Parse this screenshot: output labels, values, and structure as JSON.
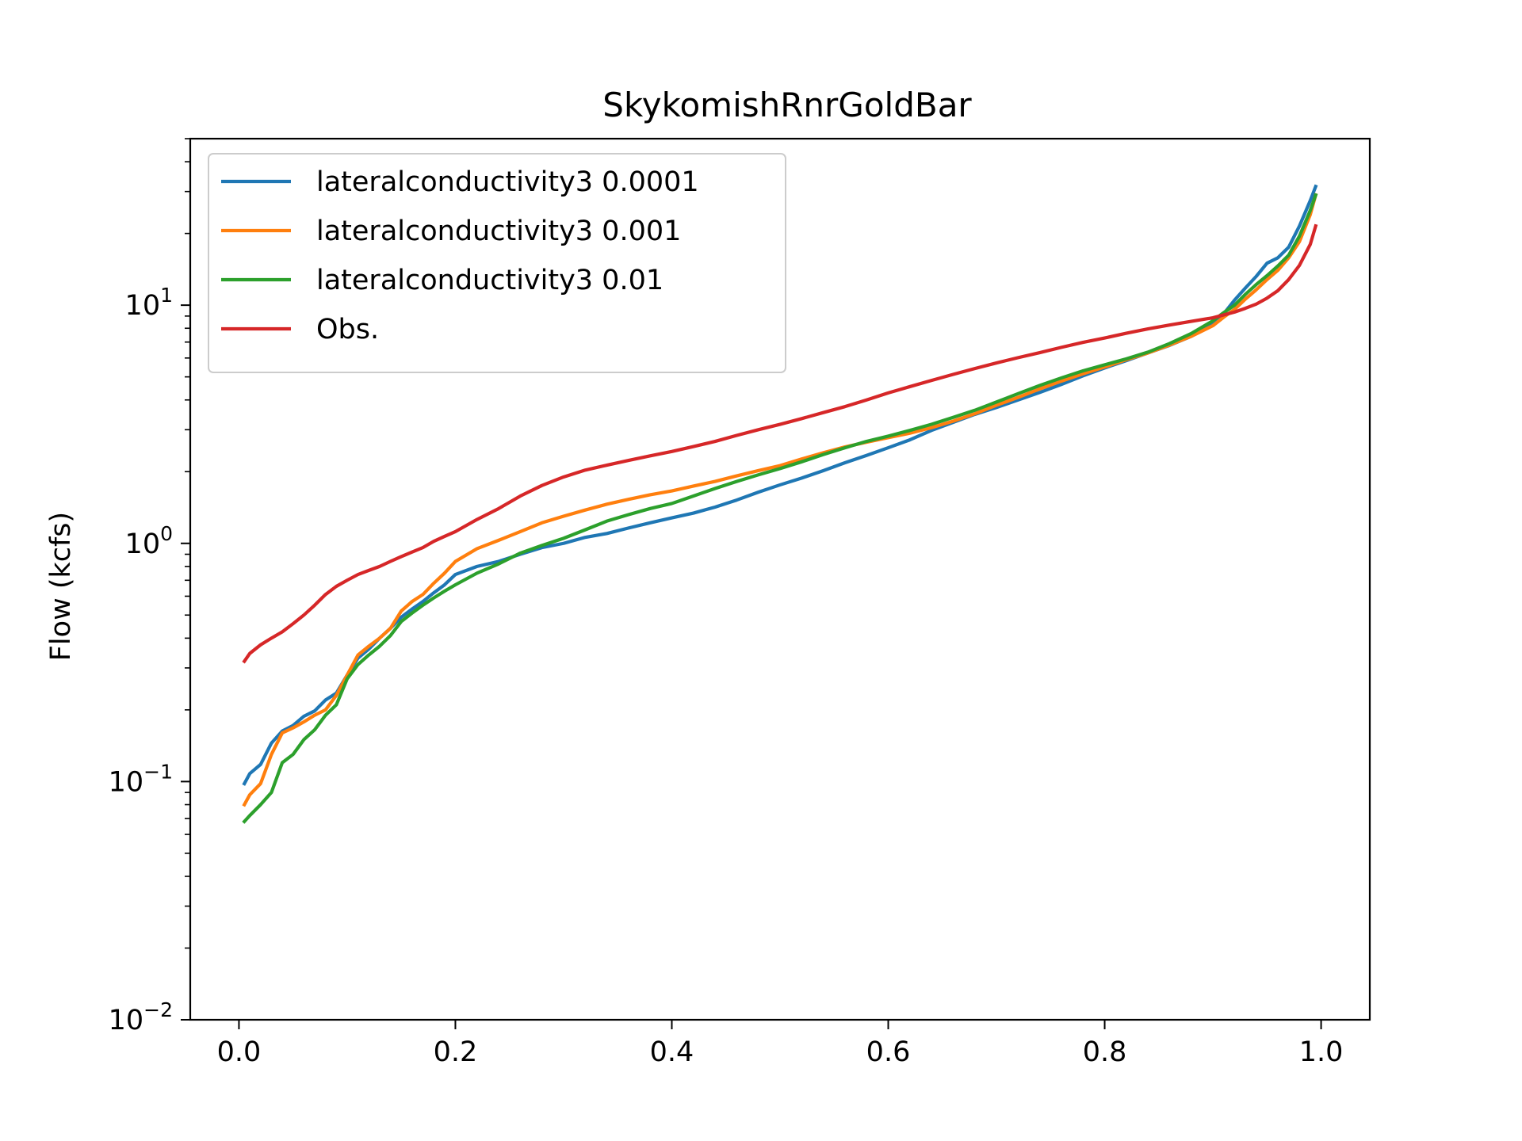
{
  "chart_data": {
    "type": "line",
    "title": "SkykomishRnrGoldBar",
    "xlabel": "",
    "ylabel": "Flow (kcfs)",
    "xlim": [
      -0.045,
      1.045
    ],
    "ylim": [
      0.01,
      50
    ],
    "yscale": "log",
    "grid": false,
    "legend_position": "upper left",
    "x_ticks": [
      {
        "value": 0.0,
        "label": "0.0"
      },
      {
        "value": 0.2,
        "label": "0.2"
      },
      {
        "value": 0.4,
        "label": "0.4"
      },
      {
        "value": 0.6,
        "label": "0.6"
      },
      {
        "value": 0.8,
        "label": "0.8"
      },
      {
        "value": 1.0,
        "label": "1.0"
      }
    ],
    "y_ticks": [
      {
        "value": 0.01,
        "base": "10",
        "exp": "−2"
      },
      {
        "value": 0.1,
        "base": "10",
        "exp": "−1"
      },
      {
        "value": 1,
        "base": "10",
        "exp": "0"
      },
      {
        "value": 10,
        "base": "10",
        "exp": "1"
      }
    ],
    "x": [
      0.005,
      0.01,
      0.02,
      0.03,
      0.04,
      0.05,
      0.06,
      0.07,
      0.08,
      0.09,
      0.1,
      0.11,
      0.12,
      0.13,
      0.14,
      0.15,
      0.16,
      0.17,
      0.18,
      0.19,
      0.2,
      0.22,
      0.24,
      0.26,
      0.28,
      0.3,
      0.32,
      0.34,
      0.36,
      0.38,
      0.4,
      0.42,
      0.44,
      0.46,
      0.48,
      0.5,
      0.52,
      0.54,
      0.56,
      0.58,
      0.6,
      0.62,
      0.64,
      0.66,
      0.68,
      0.7,
      0.72,
      0.74,
      0.76,
      0.78,
      0.8,
      0.82,
      0.84,
      0.86,
      0.88,
      0.9,
      0.91,
      0.92,
      0.93,
      0.94,
      0.95,
      0.96,
      0.97,
      0.98,
      0.99,
      0.995
    ],
    "series": [
      {
        "name": "lateralconductivity3 0.0001",
        "color": "#1f77b4",
        "values": [
          0.098,
          0.108,
          0.118,
          0.145,
          0.163,
          0.172,
          0.188,
          0.198,
          0.22,
          0.235,
          0.28,
          0.33,
          0.36,
          0.4,
          0.44,
          0.49,
          0.53,
          0.57,
          0.62,
          0.67,
          0.74,
          0.8,
          0.84,
          0.9,
          0.96,
          1.0,
          1.06,
          1.1,
          1.16,
          1.22,
          1.28,
          1.34,
          1.42,
          1.52,
          1.64,
          1.76,
          1.88,
          2.02,
          2.18,
          2.34,
          2.52,
          2.72,
          2.98,
          3.22,
          3.48,
          3.72,
          4.0,
          4.3,
          4.65,
          5.05,
          5.45,
          5.85,
          6.3,
          6.78,
          7.4,
          8.3,
          9.2,
          10.5,
          11.8,
          13.2,
          15.0,
          15.8,
          17.5,
          21.5,
          27.5,
          31.5
        ]
      },
      {
        "name": "lateralconductivity3 0.001",
        "color": "#ff7f0e",
        "values": [
          0.08,
          0.088,
          0.098,
          0.13,
          0.16,
          0.168,
          0.178,
          0.19,
          0.2,
          0.23,
          0.28,
          0.34,
          0.37,
          0.4,
          0.44,
          0.52,
          0.57,
          0.61,
          0.68,
          0.75,
          0.84,
          0.95,
          1.03,
          1.12,
          1.22,
          1.3,
          1.38,
          1.46,
          1.53,
          1.6,
          1.66,
          1.74,
          1.82,
          1.92,
          2.02,
          2.12,
          2.26,
          2.4,
          2.54,
          2.66,
          2.78,
          2.9,
          3.06,
          3.26,
          3.5,
          3.8,
          4.1,
          4.45,
          4.8,
          5.15,
          5.5,
          5.9,
          6.3,
          6.8,
          7.4,
          8.2,
          8.9,
          9.6,
          10.6,
          11.6,
          12.8,
          14.0,
          15.8,
          18.5,
          24.0,
          29.0
        ]
      },
      {
        "name": "lateralconductivity3 0.01",
        "color": "#2ca02c",
        "values": [
          0.068,
          0.072,
          0.08,
          0.09,
          0.12,
          0.13,
          0.15,
          0.165,
          0.19,
          0.21,
          0.27,
          0.31,
          0.34,
          0.37,
          0.41,
          0.47,
          0.51,
          0.55,
          0.59,
          0.63,
          0.67,
          0.75,
          0.82,
          0.91,
          0.98,
          1.05,
          1.14,
          1.24,
          1.32,
          1.4,
          1.47,
          1.58,
          1.7,
          1.82,
          1.94,
          2.06,
          2.2,
          2.36,
          2.52,
          2.68,
          2.82,
          2.98,
          3.16,
          3.38,
          3.62,
          3.92,
          4.25,
          4.6,
          4.95,
          5.3,
          5.62,
          5.95,
          6.35,
          6.9,
          7.6,
          8.6,
          9.3,
          10.0,
          11.1,
          12.2,
          13.3,
          14.6,
          16.2,
          19.5,
          25.0,
          29.0
        ]
      },
      {
        "name": "Obs.",
        "color": "#d62728",
        "values": [
          0.32,
          0.345,
          0.375,
          0.4,
          0.425,
          0.46,
          0.5,
          0.55,
          0.61,
          0.66,
          0.7,
          0.74,
          0.77,
          0.8,
          0.84,
          0.88,
          0.92,
          0.96,
          1.02,
          1.07,
          1.12,
          1.26,
          1.4,
          1.58,
          1.75,
          1.9,
          2.03,
          2.13,
          2.23,
          2.33,
          2.43,
          2.55,
          2.68,
          2.84,
          3.0,
          3.16,
          3.34,
          3.54,
          3.75,
          4.0,
          4.28,
          4.55,
          4.83,
          5.12,
          5.42,
          5.72,
          6.02,
          6.32,
          6.65,
          6.98,
          7.28,
          7.62,
          7.95,
          8.25,
          8.55,
          8.85,
          9.1,
          9.35,
          9.7,
          10.1,
          10.7,
          11.5,
          12.8,
          14.7,
          18.0,
          21.5
        ]
      }
    ]
  }
}
